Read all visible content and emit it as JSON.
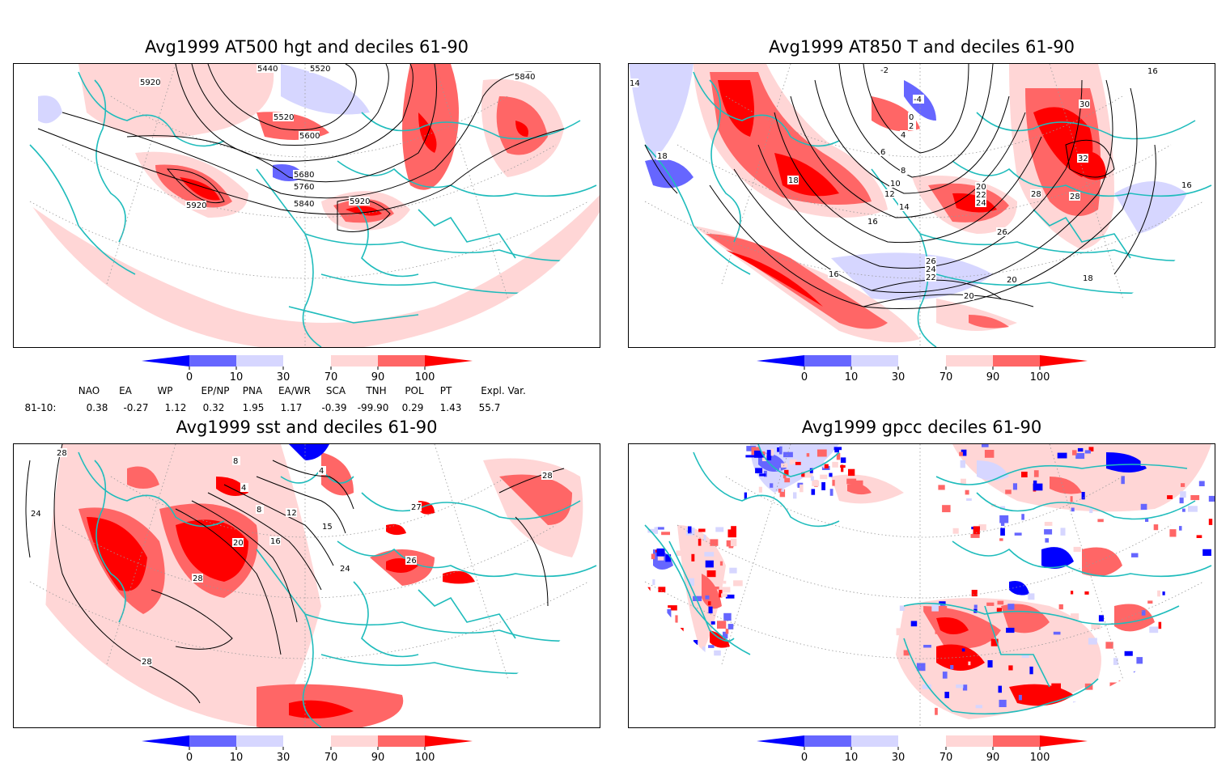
{
  "colors": {
    "d0": "#0000ff",
    "d10": "#6666ff",
    "d30": "#d6d6ff",
    "d70": "#ffd6d6",
    "d90": "#ff6666",
    "d100": "#ff0000",
    "coast": "#1fbcbc",
    "contour": "#000000"
  },
  "legend_ticks": [
    "0",
    "10",
    "30",
    "70",
    "90",
    "100"
  ],
  "panels": [
    {
      "title": "Avg1999 AT500 hgt and deciles 61-90",
      "contour_labels": [
        "5440",
        "5520",
        "5920",
        "5840",
        "5520",
        "5600",
        "5680",
        "5760",
        "5840",
        "5920",
        "5920"
      ]
    },
    {
      "title": "Avg1999 AT850 T and deciles 61-90",
      "contour_labels": [
        "-2",
        "-4",
        "0",
        "2",
        "4",
        "6",
        "8",
        "10",
        "12",
        "14",
        "16",
        "18",
        "20",
        "22",
        "24",
        "26",
        "28",
        "30",
        "32",
        "16",
        "16",
        "18",
        "20",
        "22",
        "24",
        "26",
        "28",
        "16",
        "18",
        "20",
        "14"
      ]
    },
    {
      "title": "Avg1999 sst and deciles 61-90",
      "contour_labels": [
        "28",
        "24",
        "8",
        "4",
        "8",
        "12",
        "16",
        "20",
        "24",
        "28",
        "28",
        "26",
        "27",
        "4",
        "28",
        "15"
      ]
    },
    {
      "title": "Avg1999 gpcc deciles 61-90",
      "contour_labels": []
    }
  ],
  "indices": {
    "headers": [
      "NAO",
      "EA",
      "WP",
      "EP/NP",
      "PNA",
      "EA/WR",
      "SCA",
      "TNH",
      "POL",
      "PT",
      "Expl. Var."
    ],
    "row_label": "81-10:",
    "values": [
      "0.38",
      "-0.27",
      "1.12",
      "0.32",
      "1.95",
      "1.17",
      "-0.39",
      "-99.90",
      "0.29",
      "1.43",
      "55.7"
    ]
  }
}
